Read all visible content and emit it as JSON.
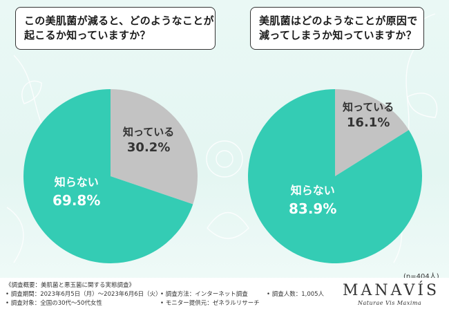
{
  "colors": {
    "unknown": "#34ccb4",
    "know": "#c3c3c3",
    "bg": "#e6f7f3"
  },
  "questions": [
    {
      "line1": "この美肌菌が減ると、どのようなことが",
      "line2": "起こるか知っていますか？"
    },
    {
      "line1": "美肌菌はどのようなことが原因で",
      "line2": "減ってしまうか知っていますか？"
    }
  ],
  "chart_data": [
    {
      "type": "pie",
      "title": "この美肌菌が減ると、どのようなことが起こるか知っていますか？",
      "slices": [
        {
          "label": "知っている",
          "value": 30.2,
          "display": "30.2%"
        },
        {
          "label": "知らない",
          "value": 69.8,
          "display": "69.8%"
        }
      ]
    },
    {
      "type": "pie",
      "title": "美肌菌はどのようなことが原因で減ってしまうか知っていますか？",
      "slices": [
        {
          "label": "知っている",
          "value": 16.1,
          "display": "16.1%"
        },
        {
          "label": "知らない",
          "value": 83.9,
          "display": "83.9%"
        }
      ]
    }
  ],
  "sample_note": "(n=404人)",
  "footer": {
    "overview": "《調査概要：美肌菌と悪玉菌に関する実態調査》",
    "period": "• 調査期間：2023年6月5日（月）～2023年6月6日（火）",
    "target": "• 調査対象：全国の30代～50代女性",
    "method": "• 調査方法：インターネット調査",
    "provider": "• モニター提供元：ゼネラルリサーチ",
    "count": "• 調査人数：1,005人"
  },
  "brand": {
    "name": "MANAVÍS",
    "tagline": "Naturae Vis Maxima"
  }
}
